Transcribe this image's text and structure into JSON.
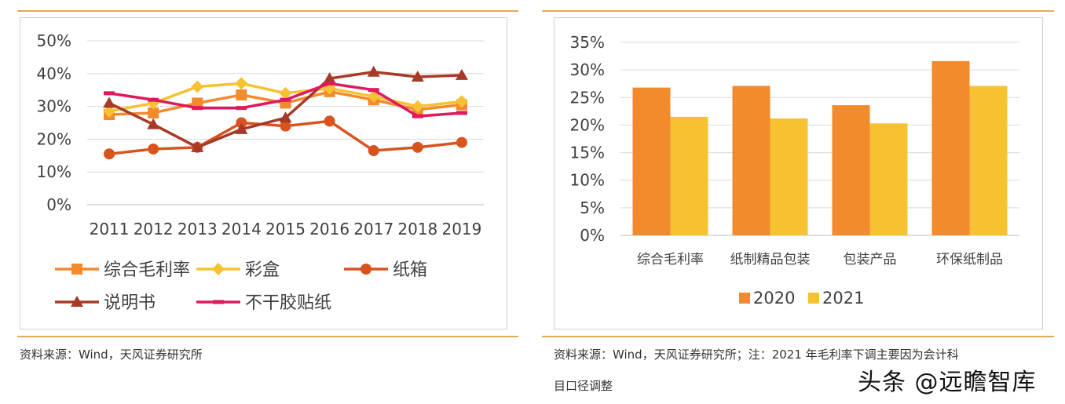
{
  "left_chart": {
    "source": "资料来源：Wind，天风证券研究所",
    "chart_data": {
      "type": "line",
      "x": [
        "2011",
        "2012",
        "2013",
        "2014",
        "2015",
        "2016",
        "2017",
        "2018",
        "2019"
      ],
      "y_ticks": [
        "0%",
        "10%",
        "20%",
        "30%",
        "40%",
        "50%"
      ],
      "ylim": [
        0,
        50
      ],
      "grid": true,
      "legend_position": "bottom",
      "series": [
        {
          "name": "综合毛利率",
          "color": "#f28a2e",
          "marker": "square",
          "values": [
            27.5,
            28,
            31,
            33.5,
            31,
            34.5,
            32,
            29,
            30.5
          ]
        },
        {
          "name": "彩盒",
          "color": "#f7c231",
          "marker": "diamond",
          "values": [
            28.5,
            31,
            36,
            37,
            34,
            35.5,
            33,
            30,
            31.5
          ]
        },
        {
          "name": "纸箱",
          "color": "#d9531e",
          "marker": "circle",
          "values": [
            15.5,
            17,
            17.5,
            25,
            24,
            25.5,
            16.5,
            17.5,
            19
          ]
        },
        {
          "name": "说明书",
          "color": "#a63a26",
          "marker": "triangle",
          "values": [
            31,
            24.5,
            17.5,
            23,
            26.5,
            38.5,
            40.5,
            39,
            39.5
          ]
        },
        {
          "name": "不干胶贴纸",
          "color": "#e0185f",
          "marker": "dash",
          "values": [
            34,
            32,
            29.5,
            29.5,
            32,
            37,
            35,
            27,
            28
          ]
        }
      ]
    }
  },
  "right_chart": {
    "source": "资料来源：Wind，天风证券研究所；注：2021 年毛利率下调主要因为会计科",
    "source_line2": "目口径调整",
    "chart_data": {
      "type": "bar",
      "categories": [
        "综合毛利率",
        "纸制精品包装",
        "包装产品",
        "环保纸制品"
      ],
      "y_ticks": [
        "0%",
        "5%",
        "10%",
        "15%",
        "20%",
        "25%",
        "30%",
        "35%"
      ],
      "ylim": [
        0,
        35
      ],
      "grid": true,
      "legend_position": "bottom",
      "series": [
        {
          "name": "2020",
          "color": "#f28a2e",
          "values": [
            26.8,
            27.1,
            23.6,
            31.6
          ]
        },
        {
          "name": "2021",
          "color": "#f7c231",
          "values": [
            21.5,
            21.2,
            20.3,
            27.1
          ]
        }
      ]
    }
  },
  "watermark": "头条 @远瞻智库"
}
